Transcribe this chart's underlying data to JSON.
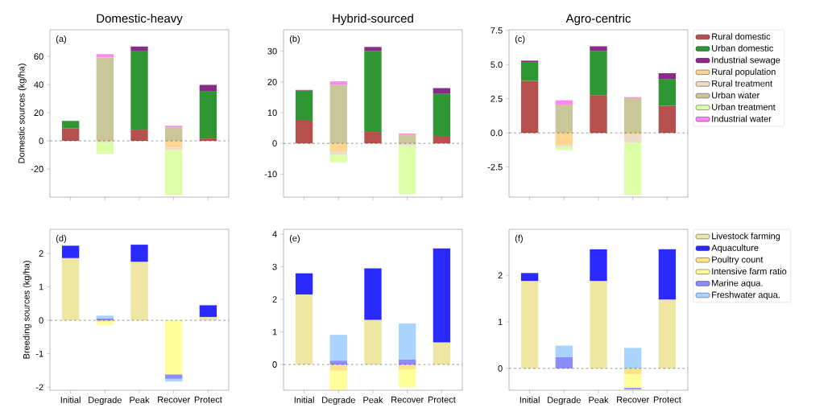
{
  "chart_data": [
    {
      "type": "bar",
      "stacked": true,
      "title": "Domestic-heavy",
      "ylabel": "Domestic sources (kg/ha)",
      "annotations": [
        "(a)"
      ],
      "categories": [
        null,
        null,
        null,
        null,
        null
      ],
      "ylim": [
        -40,
        79
      ],
      "yticks": [
        -20,
        0,
        20,
        40,
        60
      ],
      "ref_lines": [
        {
          "axis": "y",
          "value": 0,
          "line_style": "dashed",
          "color": "#000000"
        }
      ],
      "series": [
        {
          "color": "#b5504e",
          "values": [
            8.8,
            0,
            8.0,
            0,
            1.7
          ]
        },
        {
          "color": "#2e9632",
          "values": [
            5.4,
            0,
            56.1,
            0,
            33.8
          ]
        },
        {
          "color": "#8b2a8b",
          "values": [
            null,
            0,
            3.0,
            0,
            4.3
          ]
        },
        {
          "color": "#ffd58f",
          "values": [
            0,
            -0.5,
            0,
            -4.7,
            0
          ]
        },
        {
          "color": "#ecdcc8",
          "values": [
            0,
            -0.5,
            0,
            -1.8,
            0
          ]
        },
        {
          "color": "#c9c799",
          "values": [
            0,
            59.3,
            0,
            9.7,
            0
          ]
        },
        {
          "color": "#ddffa8",
          "values": [
            0,
            -8.3,
            0,
            -32.0,
            0
          ]
        },
        {
          "color": "#ff88f0",
          "values": [
            0,
            2.4,
            0,
            1.0,
            0
          ]
        }
      ]
    },
    {
      "type": "bar",
      "stacked": true,
      "title": "Hybrid-sourced",
      "annotations": [
        "(b)"
      ],
      "categories": [
        null,
        null,
        null,
        null,
        null
      ],
      "ylim": [
        -17.5,
        37
      ],
      "yticks": [
        -10,
        0,
        10,
        20,
        30
      ],
      "ref_lines": [
        {
          "axis": "y",
          "value": 0,
          "line_style": "dashed",
          "color": "#000000"
        }
      ],
      "series": [
        {
          "color": "#b5504e",
          "values": [
            7.4,
            0,
            3.7,
            0,
            2.4
          ]
        },
        {
          "color": "#2e9632",
          "values": [
            9.8,
            0,
            26.4,
            0,
            13.8
          ]
        },
        {
          "color": "#8b2a8b",
          "values": [
            0.2,
            0,
            1.3,
            0,
            1.8
          ]
        },
        {
          "color": "#ffd58f",
          "values": [
            0,
            -2.6,
            0,
            null,
            0
          ]
        },
        {
          "color": "#ecdcc8",
          "values": [
            0,
            -1.2,
            0,
            -0.9,
            0
          ]
        },
        {
          "color": "#c9c799",
          "values": [
            0,
            19.1,
            0,
            2.8,
            0
          ]
        },
        {
          "color": "#ddffa8",
          "values": [
            0,
            -2.4,
            0,
            -15.6,
            0
          ]
        },
        {
          "color": "#ff88f0",
          "values": [
            0,
            1.1,
            0,
            0.4,
            0
          ]
        }
      ]
    },
    {
      "type": "bar",
      "stacked": true,
      "title": "Agro-centric",
      "annotations": [
        "(c)"
      ],
      "legend": "right",
      "categories": [
        null,
        null,
        null,
        null,
        null
      ],
      "ylim": [
        -4.7,
        7.55
      ],
      "yticks": [
        -2.5,
        {
          "value": 0,
          "label": "0.0"
        },
        2.5,
        {
          "value": 5,
          "label": "5.0"
        },
        7.5
      ],
      "ref_lines": [
        {
          "axis": "y",
          "value": 0,
          "line_style": "dashed",
          "color": "#000000"
        }
      ],
      "series": [
        {
          "name": "Rural domestic",
          "color": "#b5504e",
          "values": [
            3.81,
            0,
            2.76,
            0,
            1.99
          ]
        },
        {
          "name": "Urban domestic",
          "color": "#2e9632",
          "values": [
            1.38,
            0,
            3.24,
            0,
            1.96
          ]
        },
        {
          "name": "Industrial sewage",
          "color": "#8b2a8b",
          "values": [
            0.1,
            0,
            0.34,
            0,
            0.42
          ]
        },
        {
          "name": "Rural population",
          "color": "#ffd58f",
          "values": [
            0,
            -0.88,
            0,
            -0.15,
            0
          ]
        },
        {
          "name": "Rural treatment",
          "color": "#ecdcc8",
          "values": [
            0,
            -0.15,
            0,
            -0.58,
            0
          ]
        },
        {
          "name": "Urban water",
          "color": "#c9c799",
          "values": [
            0,
            2.07,
            0,
            2.55,
            0
          ]
        },
        {
          "name": "Urban treatment",
          "color": "#ddffa8",
          "values": [
            0,
            -0.22,
            0,
            -3.79,
            0
          ]
        },
        {
          "name": "Industrial water",
          "color": "#ff88f0",
          "values": [
            0,
            0.32,
            0,
            0.07,
            0
          ]
        }
      ]
    },
    {
      "type": "bar",
      "stacked": true,
      "ylabel": "Breeding sources (kg/ha)",
      "annotations": [
        "(d)"
      ],
      "categories": [
        "Initial",
        "Degrade",
        "Peak",
        "Recover",
        "Protect"
      ],
      "ylim": [
        -2.09,
        2.72
      ],
      "yticks": [
        -2,
        -1,
        0,
        1,
        2
      ],
      "ref_lines": [
        {
          "axis": "y",
          "value": 0,
          "line_style": "dashed",
          "color": "#000000"
        }
      ],
      "series": [
        {
          "color": "#f0e6a4",
          "values": [
            1.86,
            0,
            1.75,
            0,
            0.1
          ]
        },
        {
          "color": "#2a2aff",
          "values": [
            0.37,
            0,
            0.51,
            0,
            0.35
          ]
        },
        {
          "color": "#ffe38a",
          "values": [
            0,
            -0.04,
            0,
            0,
            0
          ]
        },
        {
          "color": "#ffff99",
          "values": [
            0,
            -0.1,
            0,
            -1.62,
            0
          ]
        },
        {
          "color": "#8c8cff",
          "values": [
            0,
            0.05,
            0,
            -0.13,
            0
          ]
        },
        {
          "color": "#a8d4ff",
          "values": [
            0,
            0.09,
            0,
            -0.08,
            0
          ]
        }
      ]
    },
    {
      "type": "bar",
      "stacked": true,
      "annotations": [
        "(e)"
      ],
      "categories": [
        "Initial",
        "Degrade",
        "Peak",
        "Recover",
        "Protect"
      ],
      "ylim": [
        -0.79,
        4.15
      ],
      "yticks": [
        0,
        1,
        2,
        3,
        4
      ],
      "ref_lines": [
        {
          "axis": "y",
          "value": 0,
          "line_style": "dashed",
          "color": "#000000"
        }
      ],
      "series": [
        {
          "color": "#f0e6a4",
          "values": [
            2.15,
            0,
            1.37,
            0,
            0.68
          ]
        },
        {
          "color": "#2a2aff",
          "values": [
            0.65,
            0,
            1.58,
            0,
            2.88
          ]
        },
        {
          "color": "#ffe38a",
          "values": [
            0,
            -0.19,
            0,
            -0.15,
            0
          ]
        },
        {
          "color": "#ffff99",
          "values": [
            0,
            -0.58,
            0,
            -0.54,
            0
          ]
        },
        {
          "color": "#8c8cff",
          "values": [
            0,
            0.12,
            0,
            0.16,
            0
          ]
        },
        {
          "color": "#a8d4ff",
          "values": [
            0,
            0.79,
            0,
            1.1,
            0
          ]
        }
      ]
    },
    {
      "type": "bar",
      "stacked": true,
      "annotations": [
        "(f)"
      ],
      "legend": "right",
      "categories": [
        "Initial",
        "Degrade",
        "Peak",
        "Recover",
        "Protect"
      ],
      "ylim": [
        -0.47,
        2.99
      ],
      "yticks": [
        0,
        1,
        2
      ],
      "ref_lines": [
        {
          "axis": "y",
          "value": 0,
          "line_style": "dashed",
          "color": "#000000"
        }
      ],
      "series": [
        {
          "name": "Livestock farming",
          "color": "#f0e6a4",
          "values": [
            1.88,
            0,
            1.88,
            0,
            1.48
          ]
        },
        {
          "name": "Aquaculture",
          "color": "#2a2aff",
          "values": [
            0.17,
            0,
            0.68,
            0,
            1.08
          ]
        },
        {
          "name": "Poultry count",
          "color": "#ffe38a",
          "values": [
            0,
            0,
            0,
            -0.13,
            0
          ]
        },
        {
          "name": "Intensive farm ratio",
          "color": "#ffff99",
          "values": [
            0,
            0,
            0,
            -0.29,
            0
          ]
        },
        {
          "name": "Marine aqua.",
          "color": "#8c8cff",
          "values": [
            0,
            0.24,
            0,
            -0.03,
            0
          ]
        },
        {
          "name": "Freshwater aqua.",
          "color": "#a8d4ff",
          "values": [
            0,
            0.25,
            0,
            0.44,
            0
          ]
        }
      ]
    }
  ]
}
